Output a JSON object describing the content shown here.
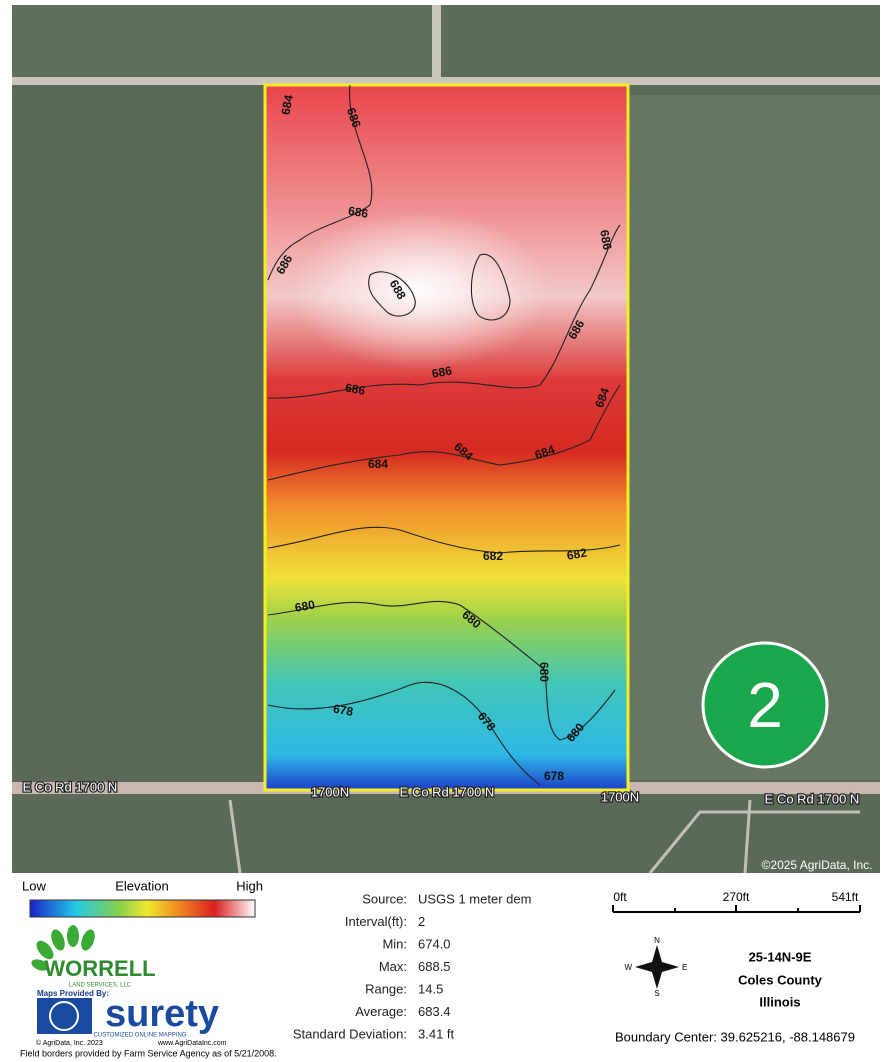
{
  "map": {
    "badge": "2",
    "copyright": "©2025 AgriData, Inc.",
    "road_labels": [
      "E Co Rd 1700 N",
      "1700N",
      "E Co Rd 1700 N",
      "1700N",
      "E Co Rd 1700 N"
    ],
    "contour_labels": [
      "684",
      "686",
      "686",
      "686",
      "688",
      "686",
      "686",
      "686",
      "686",
      "684",
      "684",
      "684",
      "684",
      "682",
      "682",
      "680",
      "680",
      "680",
      "678",
      "678",
      "680",
      "678"
    ]
  },
  "legend": {
    "low": "Low",
    "title": "Elevation",
    "high": "High"
  },
  "stats": [
    {
      "label": "Source:",
      "value": "USGS 1 meter dem"
    },
    {
      "label": "Interval(ft):",
      "value": "2"
    },
    {
      "label": "Min:",
      "value": "674.0"
    },
    {
      "label": "Max:",
      "value": "688.5"
    },
    {
      "label": "Range:",
      "value": "14.5"
    },
    {
      "label": "Average:",
      "value": "683.4"
    },
    {
      "label": "Standard Deviation:",
      "value": "3.41 ft"
    }
  ],
  "scale": [
    "0ft",
    "270ft",
    "541ft"
  ],
  "compass": {
    "n": "N",
    "s": "S",
    "e": "E",
    "w": "W"
  },
  "location": {
    "section": "25-14N-9E",
    "county": "Coles County",
    "state": "Illinois",
    "center": "Boundary Center: 39.625216, -88.148679"
  },
  "logos": {
    "worrell": "WORRELL",
    "worrell_sub": "LAND SERVICES, LLC",
    "provided": "Maps Provided By:",
    "surety": "surety",
    "surety_sub": "CUSTOMIZED ONLINE MAPPING",
    "agridata": "© AgriData, Inc. 2023",
    "url": "www.AgriDataInc.com",
    "fsa": "Field borders provided by Farm Service Agency as of 5/21/2008."
  }
}
